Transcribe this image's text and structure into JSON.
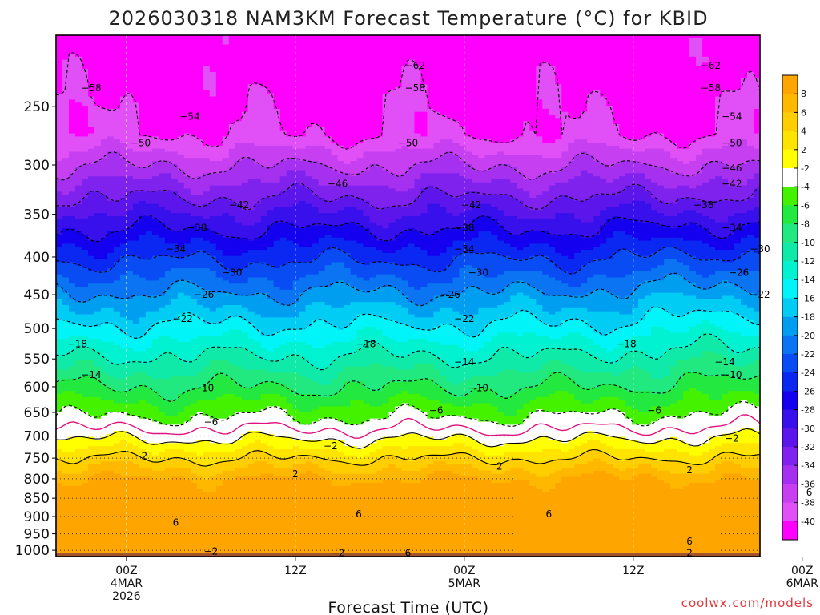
{
  "chart_data": {
    "type": "heatmap",
    "title": "2026030318 NAM3KM Forecast Temperature (°C) for KBID",
    "xlabel": "Forecast Time (UTC)",
    "ylabel": "",
    "credit": "coolwx.com/models",
    "y_scale": "log",
    "y_inverted": true,
    "ylim": [
      1020,
      200
    ],
    "xlim": [
      -5,
      45
    ],
    "y_ticks": [
      250,
      300,
      350,
      400,
      450,
      500,
      550,
      600,
      650,
      700,
      750,
      800,
      850,
      900,
      950,
      1000
    ],
    "y_tick_labels": [
      "250",
      "300",
      "350",
      "400",
      "450",
      "500",
      "550",
      "600",
      "650",
      "700",
      "750",
      "800",
      "850",
      "900",
      "950",
      "1000"
    ],
    "x_ticks": [
      {
        "hour": 0,
        "lines": [
          "00Z",
          "4MAR",
          "2026"
        ]
      },
      {
        "hour": 12,
        "lines": [
          "12Z"
        ]
      },
      {
        "hour": 24,
        "lines": [
          "00Z",
          "5MAR"
        ]
      },
      {
        "hour": 36,
        "lines": [
          "12Z"
        ]
      },
      {
        "hour": 48,
        "lines": [
          "00Z",
          "6MAR"
        ]
      }
    ],
    "grid": true,
    "colorbar": {
      "placement": "right",
      "labels": [
        "8",
        "6",
        "4",
        "2",
        "-2",
        "-4",
        "-6",
        "-8",
        "-10",
        "-12",
        "-14",
        "-16",
        "-18",
        "-20",
        "-22",
        "-24",
        "-26",
        "-28",
        "-30",
        "-32",
        "-34",
        "-36",
        "-38",
        "-40"
      ],
      "colors": [
        "#ffa500",
        "#ffb800",
        "#ffce00",
        "#ffe400",
        "#ffff00",
        "#ffffff",
        "#44f200",
        "#22e840",
        "#22e880",
        "#10eaa8",
        "#00f2d0",
        "#00f4f8",
        "#00ccf4",
        "#009ef0",
        "#0a74f2",
        "#0a4cf4",
        "#0a28f2",
        "#1400ee",
        "#3810ec",
        "#5c16ec",
        "#8022ee",
        "#a630f0",
        "#c640f2",
        "#e050f6",
        "#ff00ff"
      ]
    },
    "isotherm_labels": [
      {
        "x": 6.0,
        "p": 1003,
        "t": "−2"
      }
    ],
    "isotherm_rows": [
      {
        "p": 220,
        "labels": [
          {
            "x": 20.5,
            "t": "−62"
          },
          {
            "x": 41.5,
            "t": "−62"
          }
        ]
      },
      {
        "p": 236,
        "labels": [
          {
            "x": 20.5,
            "t": "−58"
          },
          {
            "x": -2.5,
            "t": "−58"
          },
          {
            "x": 41.5,
            "t": "−58"
          }
        ]
      },
      {
        "p": 258,
        "labels": [
          {
            "x": 4.5,
            "t": "−54"
          },
          {
            "x": 43.0,
            "t": "−54"
          }
        ]
      },
      {
        "p": 280,
        "labels": [
          {
            "x": 1.0,
            "t": "−50"
          },
          {
            "x": 20.0,
            "t": "−50"
          },
          {
            "x": 43.0,
            "t": "−50"
          }
        ]
      },
      {
        "p": 303,
        "labels": [
          {
            "x": 43.0,
            "t": "−46"
          }
        ]
      },
      {
        "p": 318,
        "labels": [
          {
            "x": 15.0,
            "t": "−46"
          },
          {
            "x": 43.0,
            "t": "−42"
          }
        ]
      },
      {
        "p": 340,
        "labels": [
          {
            "x": 8.0,
            "t": "−42"
          },
          {
            "x": 24.5,
            "t": "−42"
          },
          {
            "x": 41.0,
            "t": "−38"
          }
        ]
      },
      {
        "p": 365,
        "labels": [
          {
            "x": 5.0,
            "t": "−38"
          },
          {
            "x": 24.0,
            "t": "−38"
          },
          {
            "x": 43.0,
            "t": "−34"
          }
        ]
      },
      {
        "p": 390,
        "labels": [
          {
            "x": 3.5,
            "t": "−34"
          },
          {
            "x": 24.0,
            "t": "−34"
          },
          {
            "x": 45.0,
            "t": "−30"
          }
        ]
      },
      {
        "p": 420,
        "labels": [
          {
            "x": 7.5,
            "t": "−30"
          },
          {
            "x": 25.0,
            "t": "−30"
          },
          {
            "x": 43.5,
            "t": "−26"
          }
        ]
      },
      {
        "p": 450,
        "labels": [
          {
            "x": 5.5,
            "t": "−26"
          },
          {
            "x": 23.0,
            "t": "−26"
          },
          {
            "x": 45.0,
            "t": "−22"
          }
        ]
      },
      {
        "p": 485,
        "labels": [
          {
            "x": 4.0,
            "t": "−22"
          },
          {
            "x": 24.0,
            "t": "−22"
          }
        ]
      },
      {
        "p": 525,
        "labels": [
          {
            "x": -3.5,
            "t": "−18"
          },
          {
            "x": 17.0,
            "t": "−18"
          },
          {
            "x": 35.5,
            "t": "−18"
          }
        ]
      },
      {
        "p": 555,
        "labels": [
          {
            "x": 24.0,
            "t": "−14"
          },
          {
            "x": 42.5,
            "t": "−14"
          }
        ]
      },
      {
        "p": 578,
        "labels": [
          {
            "x": -2.5,
            "t": "−14"
          },
          {
            "x": 43.0,
            "t": "−10"
          }
        ]
      },
      {
        "p": 602,
        "labels": [
          {
            "x": 5.5,
            "t": "−10"
          },
          {
            "x": 25.0,
            "t": "−10"
          }
        ]
      },
      {
        "p": 646,
        "labels": [
          {
            "x": 22.0,
            "t": "−6"
          },
          {
            "x": 37.5,
            "t": "−6"
          }
        ]
      },
      {
        "p": 670,
        "labels": [
          {
            "x": 6.0,
            "t": "−6"
          }
        ]
      },
      {
        "p": 705,
        "labels": [
          {
            "x": 43.0,
            "t": "−2"
          }
        ]
      },
      {
        "p": 722,
        "labels": [
          {
            "x": 14.5,
            "t": "−2"
          }
        ]
      },
      {
        "p": 745,
        "labels": [
          {
            "x": 1.0,
            "t": "−2"
          }
        ]
      },
      {
        "p": 770,
        "labels": [
          {
            "x": 26.5,
            "t": "2"
          }
        ]
      },
      {
        "p": 778,
        "labels": [
          {
            "x": 40.0,
            "t": "2"
          }
        ]
      },
      {
        "p": 788,
        "labels": [
          {
            "x": 12.0,
            "t": "2"
          }
        ]
      },
      {
        "p": 835,
        "labels": [
          {
            "x": 48.5,
            "t": "6"
          }
        ]
      },
      {
        "p": 893,
        "labels": [
          {
            "x": 16.5,
            "t": "6"
          },
          {
            "x": 30.0,
            "t": "6"
          }
        ]
      },
      {
        "p": 917,
        "labels": [
          {
            "x": 3.5,
            "t": "6"
          }
        ]
      },
      {
        "p": 973,
        "labels": [
          {
            "x": 40.0,
            "t": "6"
          }
        ]
      },
      {
        "p": 1008,
        "labels": [
          {
            "x": 15.0,
            "t": "−2"
          },
          {
            "x": 20.0,
            "t": "6"
          },
          {
            "x": 40.0,
            "t": "2"
          }
        ]
      }
    ]
  }
}
